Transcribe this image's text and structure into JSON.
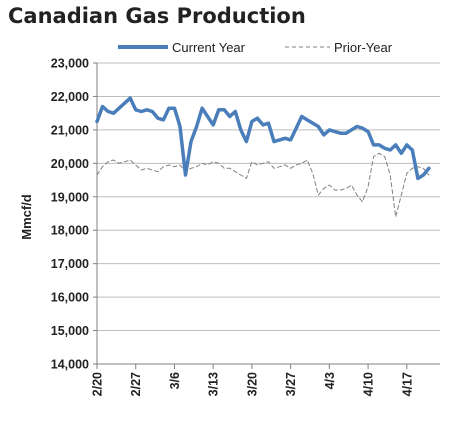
{
  "chart_data": {
    "type": "line",
    "title": "Canadian Gas Production",
    "xlabel": "",
    "ylabel": "Mmcf/d",
    "ylim": [
      14000,
      23000
    ],
    "yticks": [
      14000,
      15000,
      16000,
      17000,
      18000,
      19000,
      20000,
      21000,
      22000,
      23000
    ],
    "ytick_labels": [
      "14,000",
      "15,000",
      "16,000",
      "17,000",
      "18,000",
      "19,000",
      "20,000",
      "21,000",
      "22,000",
      "23,000"
    ],
    "x_range_days": [
      0,
      62
    ],
    "xticks": [
      {
        "label": "2/20",
        "day": 0
      },
      {
        "label": "2/27",
        "day": 7
      },
      {
        "label": "3/6",
        "day": 14
      },
      {
        "label": "3/13",
        "day": 21
      },
      {
        "label": "3/20",
        "day": 28
      },
      {
        "label": "3/27",
        "day": 35
      },
      {
        "label": "4/3",
        "day": 42
      },
      {
        "label": "4/10",
        "day": 49
      },
      {
        "label": "4/17",
        "day": 56
      }
    ],
    "grid": true,
    "legend_position": "top",
    "series": [
      {
        "name": "Current Year",
        "style": "solid",
        "color": "#4a7ebb",
        "x": [
          0,
          1,
          2,
          3,
          4,
          5,
          6,
          7,
          8,
          9,
          10,
          11,
          12,
          13,
          14,
          15,
          16,
          17,
          18,
          19,
          20,
          21,
          22,
          23,
          24,
          25,
          26,
          27,
          28,
          29,
          30,
          31,
          32,
          33,
          34,
          35,
          36,
          37,
          38,
          39,
          40,
          41,
          42,
          43,
          44,
          45,
          46,
          47,
          48,
          49,
          50,
          51,
          52,
          53,
          54,
          55,
          56,
          57,
          58,
          59,
          60
        ],
        "values": [
          21250,
          21700,
          21550,
          21500,
          21650,
          21800,
          21950,
          21600,
          21550,
          21600,
          21550,
          21350,
          21300,
          21650,
          21650,
          21100,
          19650,
          20650,
          21100,
          21650,
          21400,
          21150,
          21600,
          21600,
          21400,
          21550,
          21000,
          20650,
          21250,
          21350,
          21150,
          21200,
          20650,
          20700,
          20750,
          20700,
          21050,
          21400,
          21300,
          21200,
          21100,
          20850,
          21000,
          20950,
          20900,
          20900,
          21000,
          21100,
          21050,
          20950,
          20550,
          20550,
          20450,
          20400,
          20550,
          20300,
          20550,
          20400,
          19550,
          19650,
          19850
        ]
      },
      {
        "name": "Prior-Year",
        "style": "dashed",
        "color": "#808080",
        "x": [
          0,
          1,
          2,
          3,
          4,
          5,
          6,
          7,
          8,
          9,
          10,
          11,
          12,
          13,
          14,
          15,
          16,
          17,
          18,
          19,
          20,
          21,
          22,
          23,
          24,
          25,
          26,
          27,
          28,
          29,
          30,
          31,
          32,
          33,
          34,
          35,
          36,
          37,
          38,
          39,
          40,
          41,
          42,
          43,
          44,
          45,
          46,
          47,
          48,
          49,
          50,
          51,
          52,
          53,
          54,
          55,
          56,
          57,
          58,
          59,
          60
        ],
        "values": [
          19650,
          19900,
          20050,
          20100,
          20000,
          20050,
          20100,
          19950,
          19800,
          19850,
          19800,
          19750,
          19900,
          19950,
          19900,
          19950,
          19750,
          19850,
          19900,
          20000,
          19950,
          20050,
          20000,
          19850,
          19850,
          19750,
          19650,
          19550,
          20050,
          19950,
          20000,
          20050,
          19850,
          19900,
          19950,
          19850,
          19950,
          20000,
          20100,
          19700,
          19050,
          19250,
          19350,
          19200,
          19200,
          19250,
          19350,
          19050,
          18850,
          19300,
          20200,
          20300,
          20200,
          19650,
          18400,
          19050,
          19700,
          19850,
          19900,
          19850,
          19650
        ]
      }
    ]
  }
}
